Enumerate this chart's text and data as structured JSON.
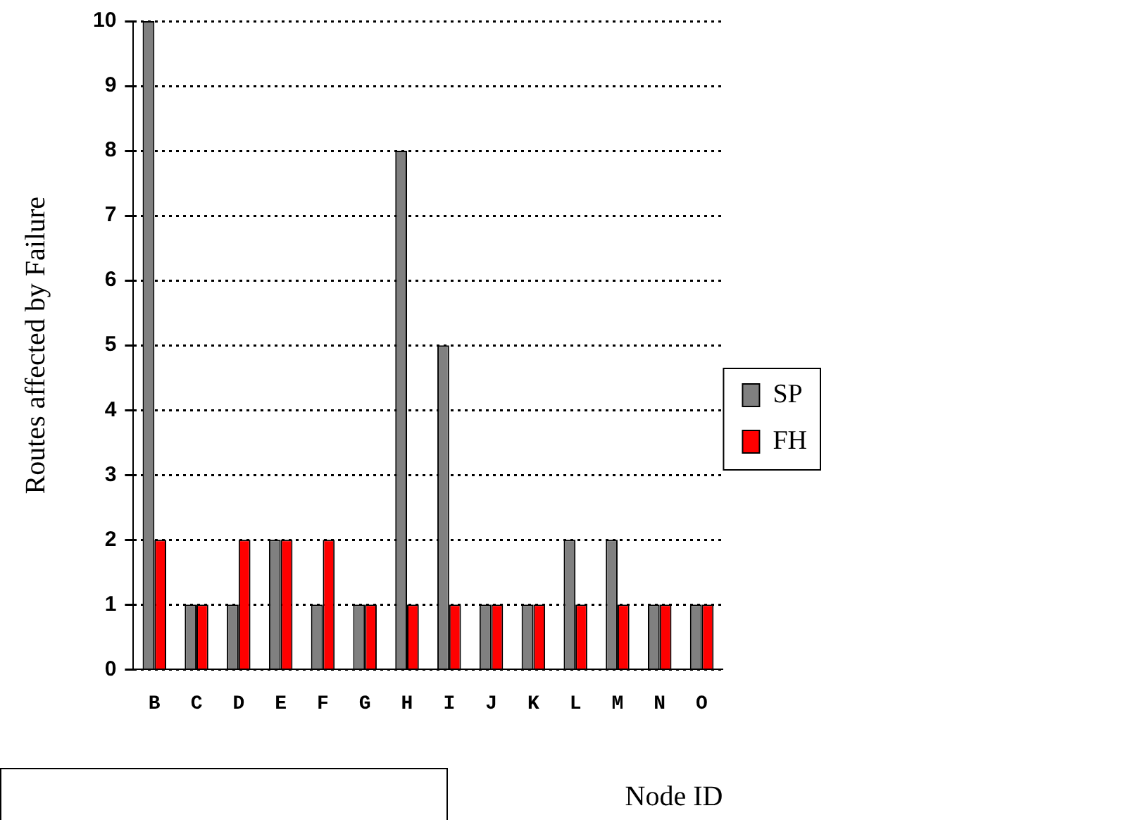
{
  "chart_data": {
    "type": "bar",
    "xlabel": "Node ID",
    "ylabel": "Routes affected by Failure",
    "categories": [
      "B",
      "C",
      "D",
      "E",
      "F",
      "G",
      "H",
      "I",
      "J",
      "K",
      "L",
      "M",
      "N",
      "O"
    ],
    "series": [
      {
        "name": "SP",
        "color": "#808080",
        "values": [
          10,
          1,
          1,
          2,
          1,
          1,
          8,
          5,
          1,
          1,
          2,
          2,
          1,
          1
        ]
      },
      {
        "name": "FH",
        "color": "#ff0000",
        "values": [
          2,
          1,
          2,
          2,
          2,
          1,
          1,
          1,
          1,
          1,
          1,
          1,
          1,
          1
        ]
      }
    ],
    "ylim": [
      0,
      10
    ],
    "yticks": [
      0,
      1,
      2,
      3,
      4,
      5,
      6,
      7,
      8,
      9,
      10
    ],
    "grid": "y",
    "legend": "right"
  }
}
